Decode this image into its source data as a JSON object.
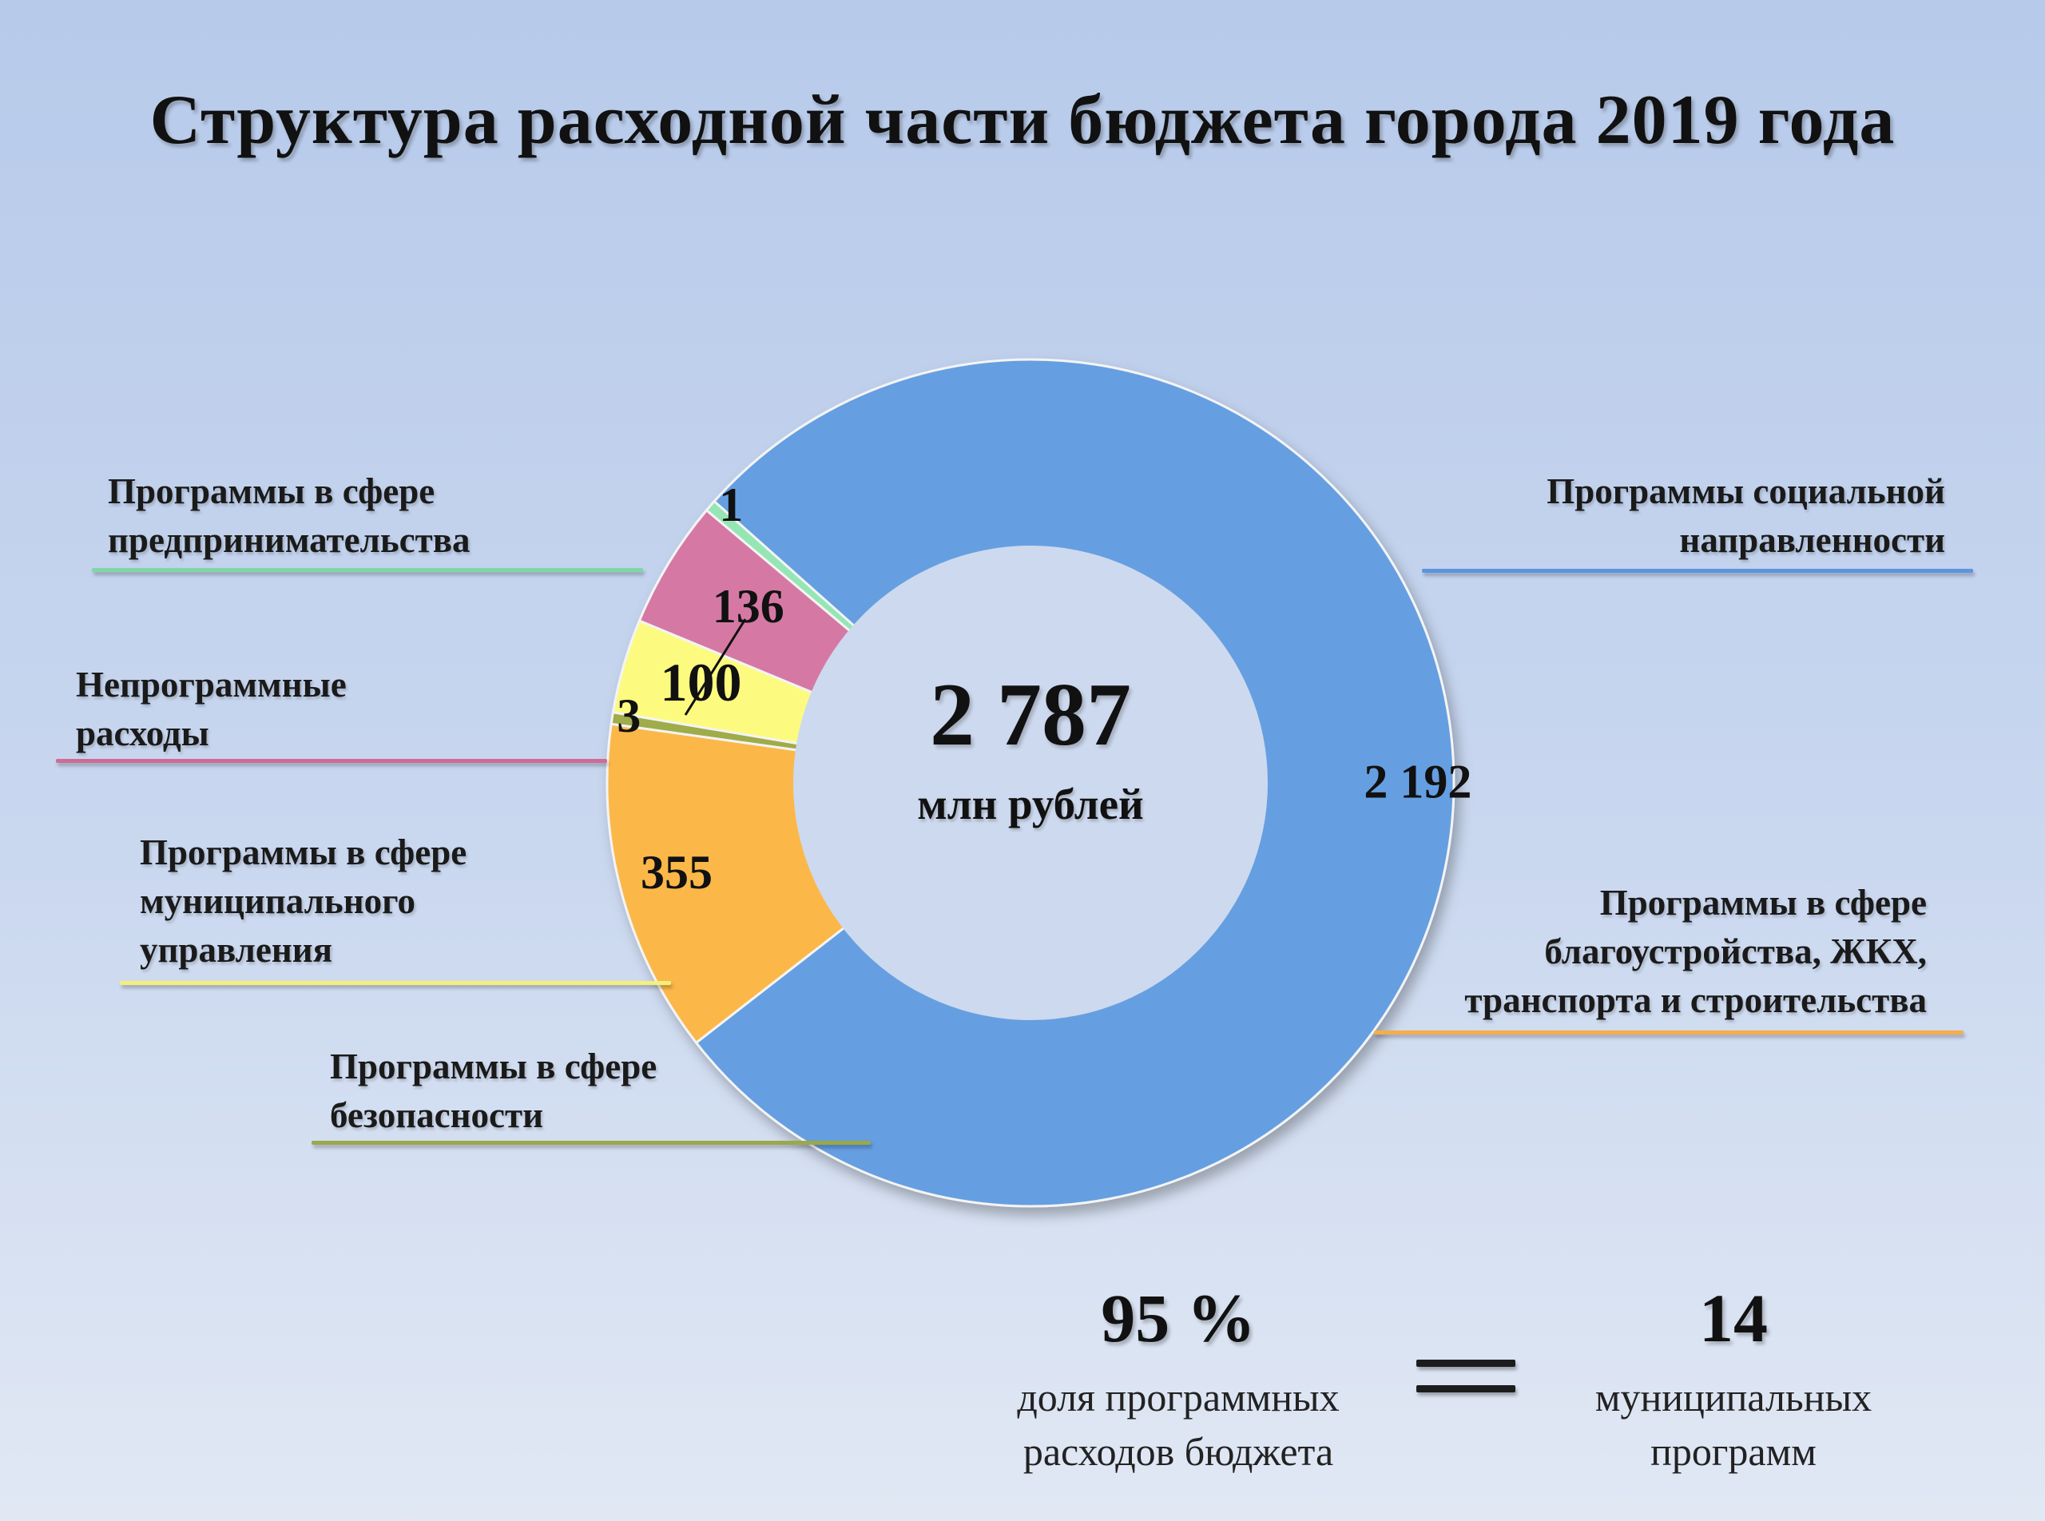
{
  "title": "Структура расходной части бюджета города 2019 года",
  "center": {
    "total": "2 787",
    "unit": "млн рублей"
  },
  "chart_data": {
    "type": "pie",
    "variant": "donut",
    "title": "Структура расходной части бюджета города 2019 года",
    "total": 2787,
    "unit": "млн рублей",
    "slices": [
      {
        "label": "Программы социальной направленности",
        "value": 2192,
        "value_label": "2 192",
        "color": "#659fe1"
      },
      {
        "label": "Программы в сфере благоустройства, ЖКХ, транспорта и строительства",
        "value": 355,
        "value_label": "355",
        "color": "#fbb84a"
      },
      {
        "label": "Программы в сфере безопасности",
        "value": 3,
        "value_label": "3",
        "color": "#9fac4a"
      },
      {
        "label": "Программы в сфере муниципального управления",
        "value": 100,
        "value_label": "100",
        "color": "#fcfb80"
      },
      {
        "label": "Непрограммные расходы",
        "value": 136,
        "value_label": "136",
        "color": "#d579a4"
      },
      {
        "label": "Программы в сфере предпринимательства",
        "value": 1,
        "value_label": "1",
        "color": "#95e6b4"
      }
    ]
  },
  "legend": {
    "social": [
      "Программы социальной",
      "направленности"
    ],
    "improvement": [
      "Программы в сфере",
      "благоустройства, ЖКХ,",
      "транспорта и строительства"
    ],
    "security": [
      "Программы в сфере",
      "безопасности"
    ],
    "municipal": [
      "Программы в сфере",
      "муниципального",
      "управления"
    ],
    "nonprogram": [
      "Непрограммные",
      "расходы"
    ],
    "business": [
      "Программы в сфере",
      "предпринимательства"
    ]
  },
  "stats": {
    "share_value": "95 %",
    "share_caption": [
      "доля программных",
      "расходов бюджета"
    ],
    "programs_value": "14",
    "programs_caption": [
      "муниципальных",
      "программ"
    ]
  }
}
